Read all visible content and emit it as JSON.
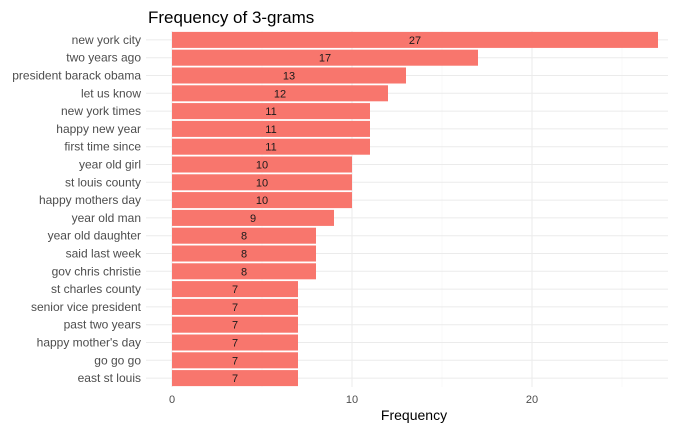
{
  "chart_data": {
    "type": "bar",
    "orientation": "horizontal",
    "title": "Frequency of 3-grams",
    "xlabel": "Frequency",
    "ylabel": "",
    "categories": [
      "new york city",
      "two years ago",
      "president barack obama",
      "let us know",
      "new york times",
      "happy new year",
      "first time since",
      "year old girl",
      "st louis county",
      "happy mothers day",
      "year old man",
      "year old daughter",
      "said last week",
      "gov chris christie",
      "st charles county",
      "senior vice president",
      "past two years",
      "happy mother's day",
      "go go go",
      "east st louis"
    ],
    "values": [
      27,
      17,
      13,
      12,
      11,
      11,
      11,
      10,
      10,
      10,
      9,
      8,
      8,
      8,
      7,
      7,
      7,
      7,
      7,
      7
    ],
    "xlim": [
      0,
      28.35
    ],
    "xticks": [
      0,
      10,
      20
    ],
    "grid": true,
    "legend": "none",
    "bar_color": "#F8766D"
  }
}
